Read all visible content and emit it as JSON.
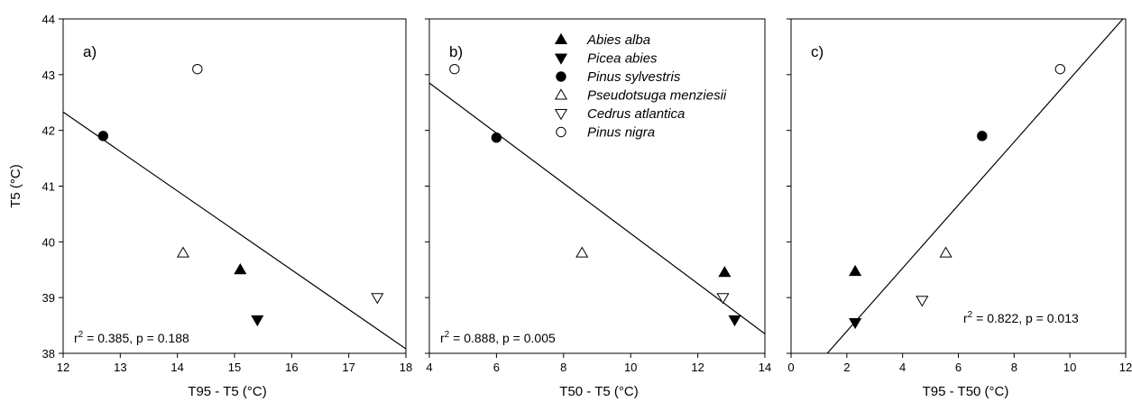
{
  "chart_data": [
    {
      "type": "scatter",
      "panel_label": "a)",
      "xlabel": "T95 -  T5 (°C)",
      "ylabel": "T5 (°C)",
      "xlim": [
        12,
        18
      ],
      "ylim": [
        38,
        44
      ],
      "xticks": [
        12,
        13,
        14,
        15,
        16,
        17,
        18
      ],
      "yticks": [
        38,
        39,
        40,
        41,
        42,
        43,
        44
      ],
      "points": [
        {
          "species": "Abies alba",
          "x": 15.1,
          "y": 39.5
        },
        {
          "species": "Picea abies",
          "x": 15.4,
          "y": 38.6
        },
        {
          "species": "Pinus sylvestris",
          "x": 12.7,
          "y": 41.9
        },
        {
          "species": "Pseudotsuga menziesii",
          "x": 14.1,
          "y": 39.8
        },
        {
          "species": "Cedrus atlantica",
          "x": 17.5,
          "y": 39.0
        },
        {
          "species": "Pinus nigra",
          "x": 14.35,
          "y": 43.1
        }
      ],
      "fit_line": [
        [
          12,
          42.33
        ],
        [
          18,
          38.08
        ]
      ],
      "stats": {
        "r2_label": "r",
        "r2_sup": "2",
        "r2_value": " = 0.385, p = 0.188"
      }
    },
    {
      "type": "scatter",
      "panel_label": "b)",
      "xlabel": "T50 -  T5 (°C)",
      "ylabel": "",
      "xlim": [
        4,
        14
      ],
      "ylim": [
        38,
        44
      ],
      "xticks": [
        4,
        6,
        8,
        10,
        12,
        14
      ],
      "yticks": [
        38,
        39,
        40,
        41,
        42,
        43,
        44
      ],
      "points": [
        {
          "species": "Abies alba",
          "x": 12.8,
          "y": 39.45
        },
        {
          "species": "Picea abies",
          "x": 13.1,
          "y": 38.6
        },
        {
          "species": "Pinus sylvestris",
          "x": 6.0,
          "y": 41.87
        },
        {
          "species": "Pseudotsuga menziesii",
          "x": 8.55,
          "y": 39.8
        },
        {
          "species": "Cedrus atlantica",
          "x": 12.75,
          "y": 39.0
        },
        {
          "species": "Pinus nigra",
          "x": 4.75,
          "y": 43.1
        }
      ],
      "fit_line": [
        [
          4,
          42.85
        ],
        [
          14,
          38.35
        ]
      ],
      "stats": {
        "r2_label": "r",
        "r2_sup": "2",
        "r2_value": " = 0.888, p = 0.005"
      }
    },
    {
      "type": "scatter",
      "panel_label": "c)",
      "xlabel": "T95 -  T50 (°C)",
      "ylabel": "",
      "xlim": [
        0,
        12
      ],
      "ylim": [
        38,
        44
      ],
      "xticks": [
        0,
        2,
        4,
        6,
        8,
        10,
        12
      ],
      "yticks": [
        38,
        39,
        40,
        41,
        42,
        43,
        44
      ],
      "points": [
        {
          "species": "Abies alba",
          "x": 2.3,
          "y": 39.47
        },
        {
          "species": "Picea abies",
          "x": 2.3,
          "y": 38.55
        },
        {
          "species": "Pinus sylvestris",
          "x": 6.85,
          "y": 41.9
        },
        {
          "species": "Pseudotsuga menziesii",
          "x": 5.55,
          "y": 39.8
        },
        {
          "species": "Cedrus atlantica",
          "x": 4.7,
          "y": 38.95
        },
        {
          "species": "Pinus nigra",
          "x": 9.65,
          "y": 43.1
        }
      ],
      "fit_line": [
        [
          1.3,
          38.0
        ],
        [
          11.9,
          44.0
        ]
      ],
      "stats": {
        "r2_label": "r",
        "r2_sup": "2",
        "r2_value": " = 0.822, p = 0.013"
      }
    }
  ],
  "legend": {
    "placement": "top-center of panel b",
    "entries": [
      {
        "name": "Abies alba",
        "marker": "triangle-up",
        "filled": true
      },
      {
        "name": "Picea abies",
        "marker": "triangle-down",
        "filled": true
      },
      {
        "name": "Pinus sylvestris",
        "marker": "circle",
        "filled": true
      },
      {
        "name": "Pseudotsuga menziesii",
        "marker": "triangle-up",
        "filled": false
      },
      {
        "name": "Cedrus atlantica",
        "marker": "triangle-down",
        "filled": false
      },
      {
        "name": "Pinus nigra",
        "marker": "circle",
        "filled": false
      }
    ]
  }
}
